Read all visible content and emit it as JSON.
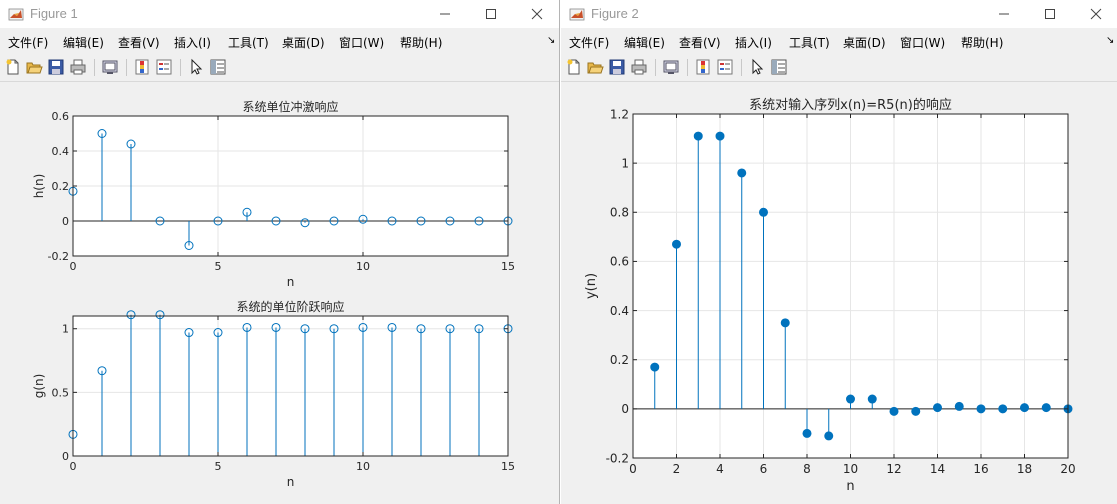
{
  "menu_items": [
    "文件(F)",
    "编辑(E)",
    "查看(V)",
    "插入(I)",
    "工具(T)",
    "桌面(D)",
    "窗口(W)",
    "帮助(H)"
  ],
  "colors": {
    "stem": "#0072bd",
    "grid": "#e6e6e6",
    "axis": "#262626",
    "title_gray": "#999999"
  },
  "toolbar_icons": [
    "new-figure-icon",
    "open-file-icon",
    "save-icon",
    "print-icon",
    "print-preview-icon",
    "colorbar-icon",
    "legend-icon",
    "pointer-icon",
    "property-inspector-icon"
  ],
  "window1": {
    "title": "Figure 1",
    "chart_data": [
      {
        "type": "stem",
        "title": "系统单位冲激响应",
        "xlabel": "n",
        "ylabel": "h(n)",
        "xlim": [
          0,
          15
        ],
        "ylim": [
          -0.2,
          0.6
        ],
        "xticks": [
          0,
          5,
          10,
          15
        ],
        "yticks": [
          -0.2,
          0,
          0.2,
          0.4,
          0.6
        ],
        "grid": true,
        "marker": "open-circle",
        "x": [
          0,
          1,
          2,
          3,
          4,
          5,
          6,
          7,
          8,
          9,
          10,
          11,
          12,
          13,
          14,
          15
        ],
        "values": [
          0.17,
          0.5,
          0.44,
          0.0,
          -0.14,
          0.0,
          0.05,
          0.0,
          -0.01,
          0.0,
          0.01,
          0.0,
          0.0,
          0.0,
          0.0,
          0.0
        ]
      },
      {
        "type": "stem",
        "title": "系统的单位阶跃响应",
        "xlabel": "n",
        "ylabel": "g(n)",
        "xlim": [
          0,
          15
        ],
        "ylim": [
          0,
          1.1
        ],
        "xticks": [
          0,
          5,
          10,
          15
        ],
        "yticks": [
          0,
          0.5,
          1
        ],
        "grid": true,
        "marker": "open-circle",
        "x": [
          0,
          1,
          2,
          3,
          4,
          5,
          6,
          7,
          8,
          9,
          10,
          11,
          12,
          13,
          14,
          15
        ],
        "values": [
          0.17,
          0.67,
          1.11,
          1.11,
          0.97,
          0.97,
          1.01,
          1.01,
          1.0,
          1.0,
          1.01,
          1.01,
          1.0,
          1.0,
          1.0,
          1.0
        ]
      }
    ]
  },
  "window2": {
    "title": "Figure 2",
    "chart_data": {
      "type": "stem",
      "title": "系统对输入序列x(n)=R5(n)的响应",
      "xlabel": "n",
      "ylabel": "y(n)",
      "xlim": [
        0,
        20
      ],
      "ylim": [
        -0.2,
        1.2
      ],
      "xticks": [
        0,
        2,
        4,
        6,
        8,
        10,
        12,
        14,
        16,
        18,
        20
      ],
      "yticks": [
        -0.2,
        0,
        0.2,
        0.4,
        0.6,
        0.8,
        1,
        1.2
      ],
      "grid": true,
      "marker": "filled-circle",
      "x": [
        1,
        2,
        3,
        4,
        5,
        6,
        7,
        8,
        9,
        10,
        11,
        12,
        13,
        14,
        15,
        16,
        17,
        18,
        19,
        20
      ],
      "values": [
        0.17,
        0.67,
        1.11,
        1.11,
        0.96,
        0.8,
        0.35,
        -0.1,
        -0.11,
        0.04,
        0.04,
        -0.01,
        -0.01,
        0.005,
        0.01,
        0.0,
        0.0,
        0.005,
        0.005,
        0.0
      ]
    }
  }
}
